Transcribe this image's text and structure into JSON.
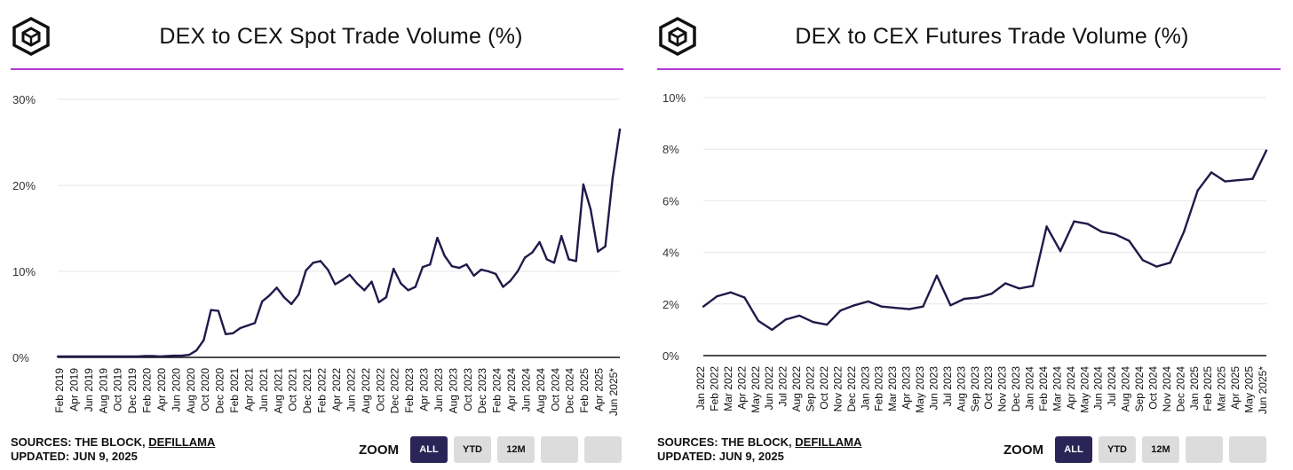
{
  "colors": {
    "line": "#1e1b4b",
    "accent_rule": "#b13ad6",
    "grid": "#e6e6e6",
    "zoom_active": "#2a2556"
  },
  "panels": [
    {
      "logo_icon": "the-block-cube-logo",
      "sources_prefix": "SOURCES: THE BLOCK, ",
      "sources_link": "DEFILLAMA",
      "updated": "UPDATED: JUN 9, 2025",
      "zoom": {
        "label": "ZOOM",
        "buttons": [
          "ALL",
          "YTD",
          "12M",
          "",
          ""
        ],
        "active": "ALL"
      }
    },
    {
      "logo_icon": "the-block-cube-logo",
      "sources_prefix": "SOURCES: THE BLOCK, ",
      "sources_link": "DEFILLAMA",
      "updated": "UPDATED: JUN 9, 2025",
      "zoom": {
        "label": "ZOOM",
        "buttons": [
          "ALL",
          "YTD",
          "12M",
          "",
          ""
        ],
        "active": "ALL"
      }
    }
  ],
  "chart_data": [
    {
      "type": "line",
      "title": "DEX to CEX Spot Trade Volume (%)",
      "xlabel": "",
      "ylabel": "",
      "ylim": [
        0,
        30
      ],
      "yticks": [
        {
          "v": 0,
          "label": "0%"
        },
        {
          "v": 10,
          "label": "10%"
        },
        {
          "v": 20,
          "label": "20%"
        },
        {
          "v": 30,
          "label": "30%"
        }
      ],
      "xlim_months": [
        "Jan 2019",
        "Jun 2025"
      ],
      "xtick_labels": [
        "Feb 2019",
        "Apr 2019",
        "Jun 2019",
        "Aug 2019",
        "Oct 2019",
        "Dec 2019",
        "Feb 2020",
        "Apr 2020",
        "Jun 2020",
        "Aug 2020",
        "Oct 2020",
        "Dec 2020",
        "Feb 2021",
        "Apr 2021",
        "Jun 2021",
        "Aug 2021",
        "Oct 2021",
        "Dec 2021",
        "Feb 2022",
        "Apr 2022",
        "Jun 2022",
        "Aug 2022",
        "Oct 2022",
        "Dec 2022",
        "Feb 2023",
        "Apr 2023",
        "Jun 2023",
        "Aug 2023",
        "Oct 2023",
        "Dec 2023",
        "Feb 2024",
        "Apr 2024",
        "Jun 2024",
        "Aug 2024",
        "Oct 2024",
        "Dec 2024",
        "Feb 2025",
        "Apr 2025",
        "Jun 2025*"
      ],
      "series": [
        {
          "name": "DEX to CEX Spot",
          "values": [
            0.1,
            0.1,
            0.1,
            0.1,
            0.1,
            0.1,
            0.1,
            0.1,
            0.1,
            0.1,
            0.1,
            0.1,
            0.15,
            0.15,
            0.1,
            0.15,
            0.2,
            0.2,
            0.3,
            0.8,
            2.0,
            5.5,
            5.4,
            2.7,
            2.8,
            3.4,
            3.7,
            4.0,
            6.5,
            7.2,
            8.1,
            7.0,
            6.2,
            7.3,
            10.1,
            11.0,
            11.2,
            10.2,
            8.5,
            9.0,
            9.6,
            8.6,
            7.8,
            8.8,
            6.4,
            7.0,
            10.3,
            8.6,
            7.8,
            8.2,
            10.5,
            10.8,
            13.9,
            11.8,
            10.6,
            10.4,
            10.8,
            9.5,
            10.2,
            10.0,
            9.7,
            8.2,
            8.9,
            10.0,
            11.6,
            12.2,
            13.4,
            11.4,
            11.0,
            14.1,
            11.4,
            11.2,
            20.1,
            17.2,
            12.3,
            12.9,
            20.8,
            26.5
          ]
        }
      ]
    },
    {
      "type": "line",
      "title": "DEX to CEX Futures Trade Volume (%)",
      "xlabel": "",
      "ylabel": "",
      "ylim": [
        0,
        10
      ],
      "yticks": [
        {
          "v": 0,
          "label": "0%"
        },
        {
          "v": 2,
          "label": "2%"
        },
        {
          "v": 4,
          "label": "4%"
        },
        {
          "v": 6,
          "label": "6%"
        },
        {
          "v": 8,
          "label": "8%"
        },
        {
          "v": 10,
          "label": "10%"
        }
      ],
      "xtick_labels": [
        "Jan 2022",
        "Feb 2022",
        "Mar 2022",
        "Apr 2022",
        "May 2022",
        "Jun 2022",
        "Jul 2022",
        "Aug 2022",
        "Sep 2022",
        "Oct 2022",
        "Nov 2022",
        "Dec 2022",
        "Jan 2023",
        "Feb 2023",
        "Mar 2023",
        "Apr 2023",
        "May 2023",
        "Jun 2023",
        "Jul 2023",
        "Aug 2023",
        "Sep 2023",
        "Oct 2023",
        "Nov 2023",
        "Dec 2023",
        "Jan 2024",
        "Feb 2024",
        "Mar 2024",
        "Apr 2024",
        "May 2024",
        "Jun 2024",
        "Jul 2024",
        "Aug 2024",
        "Sep 2024",
        "Oct 2024",
        "Nov 2024",
        "Dec 2024",
        "Jan 2025",
        "Feb 2025",
        "Mar 2025",
        "Apr 2025",
        "May 2025",
        "Jun 2025*"
      ],
      "series": [
        {
          "name": "DEX to CEX Futures",
          "values": [
            1.9,
            2.3,
            2.45,
            2.25,
            1.35,
            1.0,
            1.4,
            1.55,
            1.3,
            1.2,
            1.75,
            1.95,
            2.1,
            1.9,
            1.85,
            1.8,
            1.9,
            3.1,
            1.95,
            2.2,
            2.25,
            2.4,
            2.8,
            2.6,
            2.7,
            5.0,
            4.05,
            5.2,
            5.1,
            4.8,
            4.7,
            4.45,
            3.7,
            3.45,
            3.6,
            4.8,
            6.4,
            7.1,
            6.75,
            6.8,
            6.85,
            7.95
          ]
        }
      ]
    }
  ]
}
